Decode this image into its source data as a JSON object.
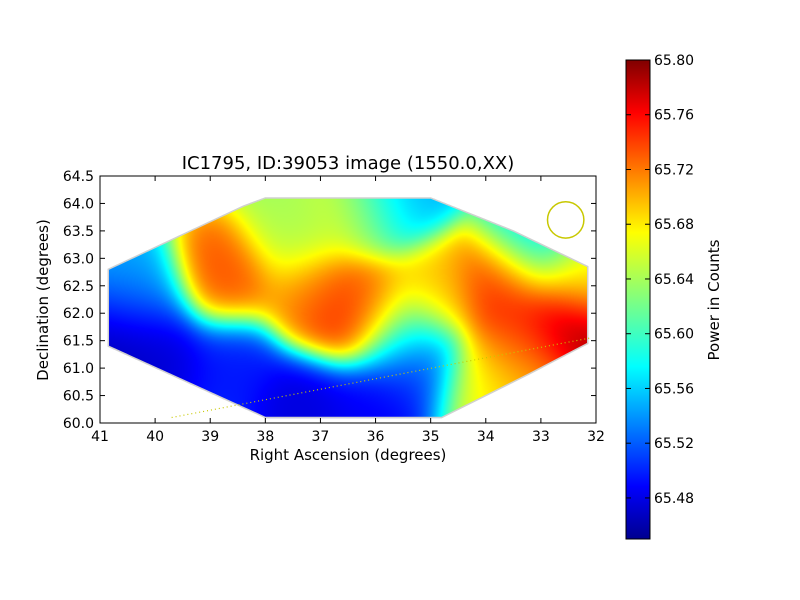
{
  "chart_data": {
    "type": "heatmap",
    "title": "IC1795, ID:39053 image (1550.0,XX)",
    "xlabel": "Right Ascension (degrees)",
    "ylabel": "Declination (degrees)",
    "xlim": [
      41,
      32
    ],
    "ylim": [
      60.0,
      64.5
    ],
    "x_ticks": [
      "41",
      "40",
      "39",
      "38",
      "37",
      "36",
      "35",
      "34",
      "33",
      "32"
    ],
    "y_ticks": [
      "60.0",
      "60.5",
      "61.0",
      "61.5",
      "62.0",
      "62.5",
      "63.0",
      "63.5",
      "64.0",
      "64.5"
    ],
    "colorbar": {
      "label": "Power in Counts",
      "range": [
        65.45,
        65.8
      ],
      "ticks": [
        "65.48",
        "65.52",
        "65.56",
        "65.60",
        "65.64",
        "65.68",
        "65.72",
        "65.76",
        "65.80"
      ],
      "colormap": "jet"
    },
    "footprint_outline": [
      [
        40.85,
        62.8
      ],
      [
        38.4,
        63.95
      ],
      [
        38.0,
        64.1
      ],
      [
        35.0,
        64.1
      ],
      [
        33.5,
        63.5
      ],
      [
        32.15,
        62.85
      ],
      [
        32.15,
        61.45
      ],
      [
        33.2,
        60.9
      ],
      [
        34.8,
        60.1
      ],
      [
        38.0,
        60.1
      ],
      [
        40.85,
        61.4
      ]
    ],
    "field_values": {
      "background": 65.6,
      "sources": [
        {
          "x": 36.7,
          "y": 62.0,
          "value": 65.76
        },
        {
          "x": 36.15,
          "y": 62.15,
          "value": 65.72
        },
        {
          "x": 37.2,
          "y": 62.35,
          "value": 65.7
        },
        {
          "x": 38.7,
          "y": 62.62,
          "value": 65.73
        },
        {
          "x": 33.75,
          "y": 62.55,
          "value": 65.75
        },
        {
          "x": 34.9,
          "y": 62.45,
          "value": 65.69
        },
        {
          "x": 32.5,
          "y": 61.7,
          "value": 65.8
        },
        {
          "x": 33.3,
          "y": 61.5,
          "value": 65.74
        },
        {
          "x": 33.3,
          "y": 60.95,
          "value": 65.69
        },
        {
          "x": 34.1,
          "y": 60.65,
          "value": 65.67
        },
        {
          "x": 36.3,
          "y": 63.8,
          "value": 65.66
        },
        {
          "x": 37.5,
          "y": 63.4,
          "value": 65.64
        },
        {
          "x": 40.5,
          "y": 61.6,
          "value": 65.46
        },
        {
          "x": 39.9,
          "y": 61.25,
          "value": 65.48
        },
        {
          "x": 38.6,
          "y": 61.1,
          "value": 65.5
        },
        {
          "x": 37.3,
          "y": 60.5,
          "value": 65.48
        },
        {
          "x": 36.1,
          "y": 60.3,
          "value": 65.49
        },
        {
          "x": 40.3,
          "y": 62.25,
          "value": 65.55
        },
        {
          "x": 35.5,
          "y": 61.6,
          "value": 65.58
        },
        {
          "x": 35.3,
          "y": 60.9,
          "value": 65.5
        },
        {
          "x": 35.7,
          "y": 64.0,
          "value": 65.55
        },
        {
          "x": 33.2,
          "y": 63.3,
          "value": 65.57
        },
        {
          "x": 32.3,
          "y": 62.6,
          "value": 65.67
        }
      ]
    },
    "beam_circle": {
      "x": 32.55,
      "y": 63.7,
      "radius_deg": 0.33,
      "color": "#c8c800"
    },
    "dotted_track": {
      "from": [
        39.7,
        60.1
      ],
      "to": [
        32.1,
        61.55
      ],
      "color": "#c8c800"
    },
    "grid": false,
    "legend": "none"
  }
}
